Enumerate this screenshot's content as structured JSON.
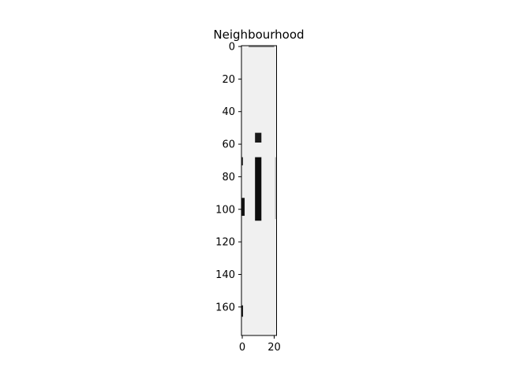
{
  "chart_data": {
    "type": "heatmap",
    "title": "Neighbourhood",
    "xlabel": "",
    "ylabel": "",
    "colormap": "grayscale",
    "image_width": 22,
    "image_height": 178,
    "xlim": [
      -0.5,
      21.5
    ],
    "ylim": [
      177.5,
      -0.5
    ],
    "x_ticks": [
      0,
      20
    ],
    "x_tick_labels": [
      "0",
      "20"
    ],
    "y_ticks": [
      0,
      20,
      40,
      60,
      80,
      100,
      120,
      140,
      160
    ],
    "y_tick_labels": [
      "0",
      "20",
      "40",
      "60",
      "80",
      "100",
      "120",
      "140",
      "160"
    ],
    "background_value": 0.94,
    "dark_regions": [
      {
        "x0": 4,
        "x1": 20,
        "y0": -0.5,
        "y1": 0.5,
        "value": 0.55
      },
      {
        "x0": 8,
        "x1": 12,
        "y0": 53,
        "y1": 59,
        "value": 0.1
      },
      {
        "x0": 8,
        "x1": 12,
        "y0": 68,
        "y1": 107,
        "value": 0.05
      },
      {
        "x0": -0.5,
        "x1": 0.5,
        "y0": 68,
        "y1": 73,
        "value": 0.25
      },
      {
        "x0": -0.5,
        "x1": 1.5,
        "y0": 93,
        "y1": 104,
        "value": 0.08
      },
      {
        "x0": -0.5,
        "x1": 0.5,
        "y0": 159,
        "y1": 166,
        "value": 0.12
      },
      {
        "x0": 20.5,
        "x1": 21.5,
        "y0": 68,
        "y1": 106,
        "value": 0.72
      }
    ]
  }
}
